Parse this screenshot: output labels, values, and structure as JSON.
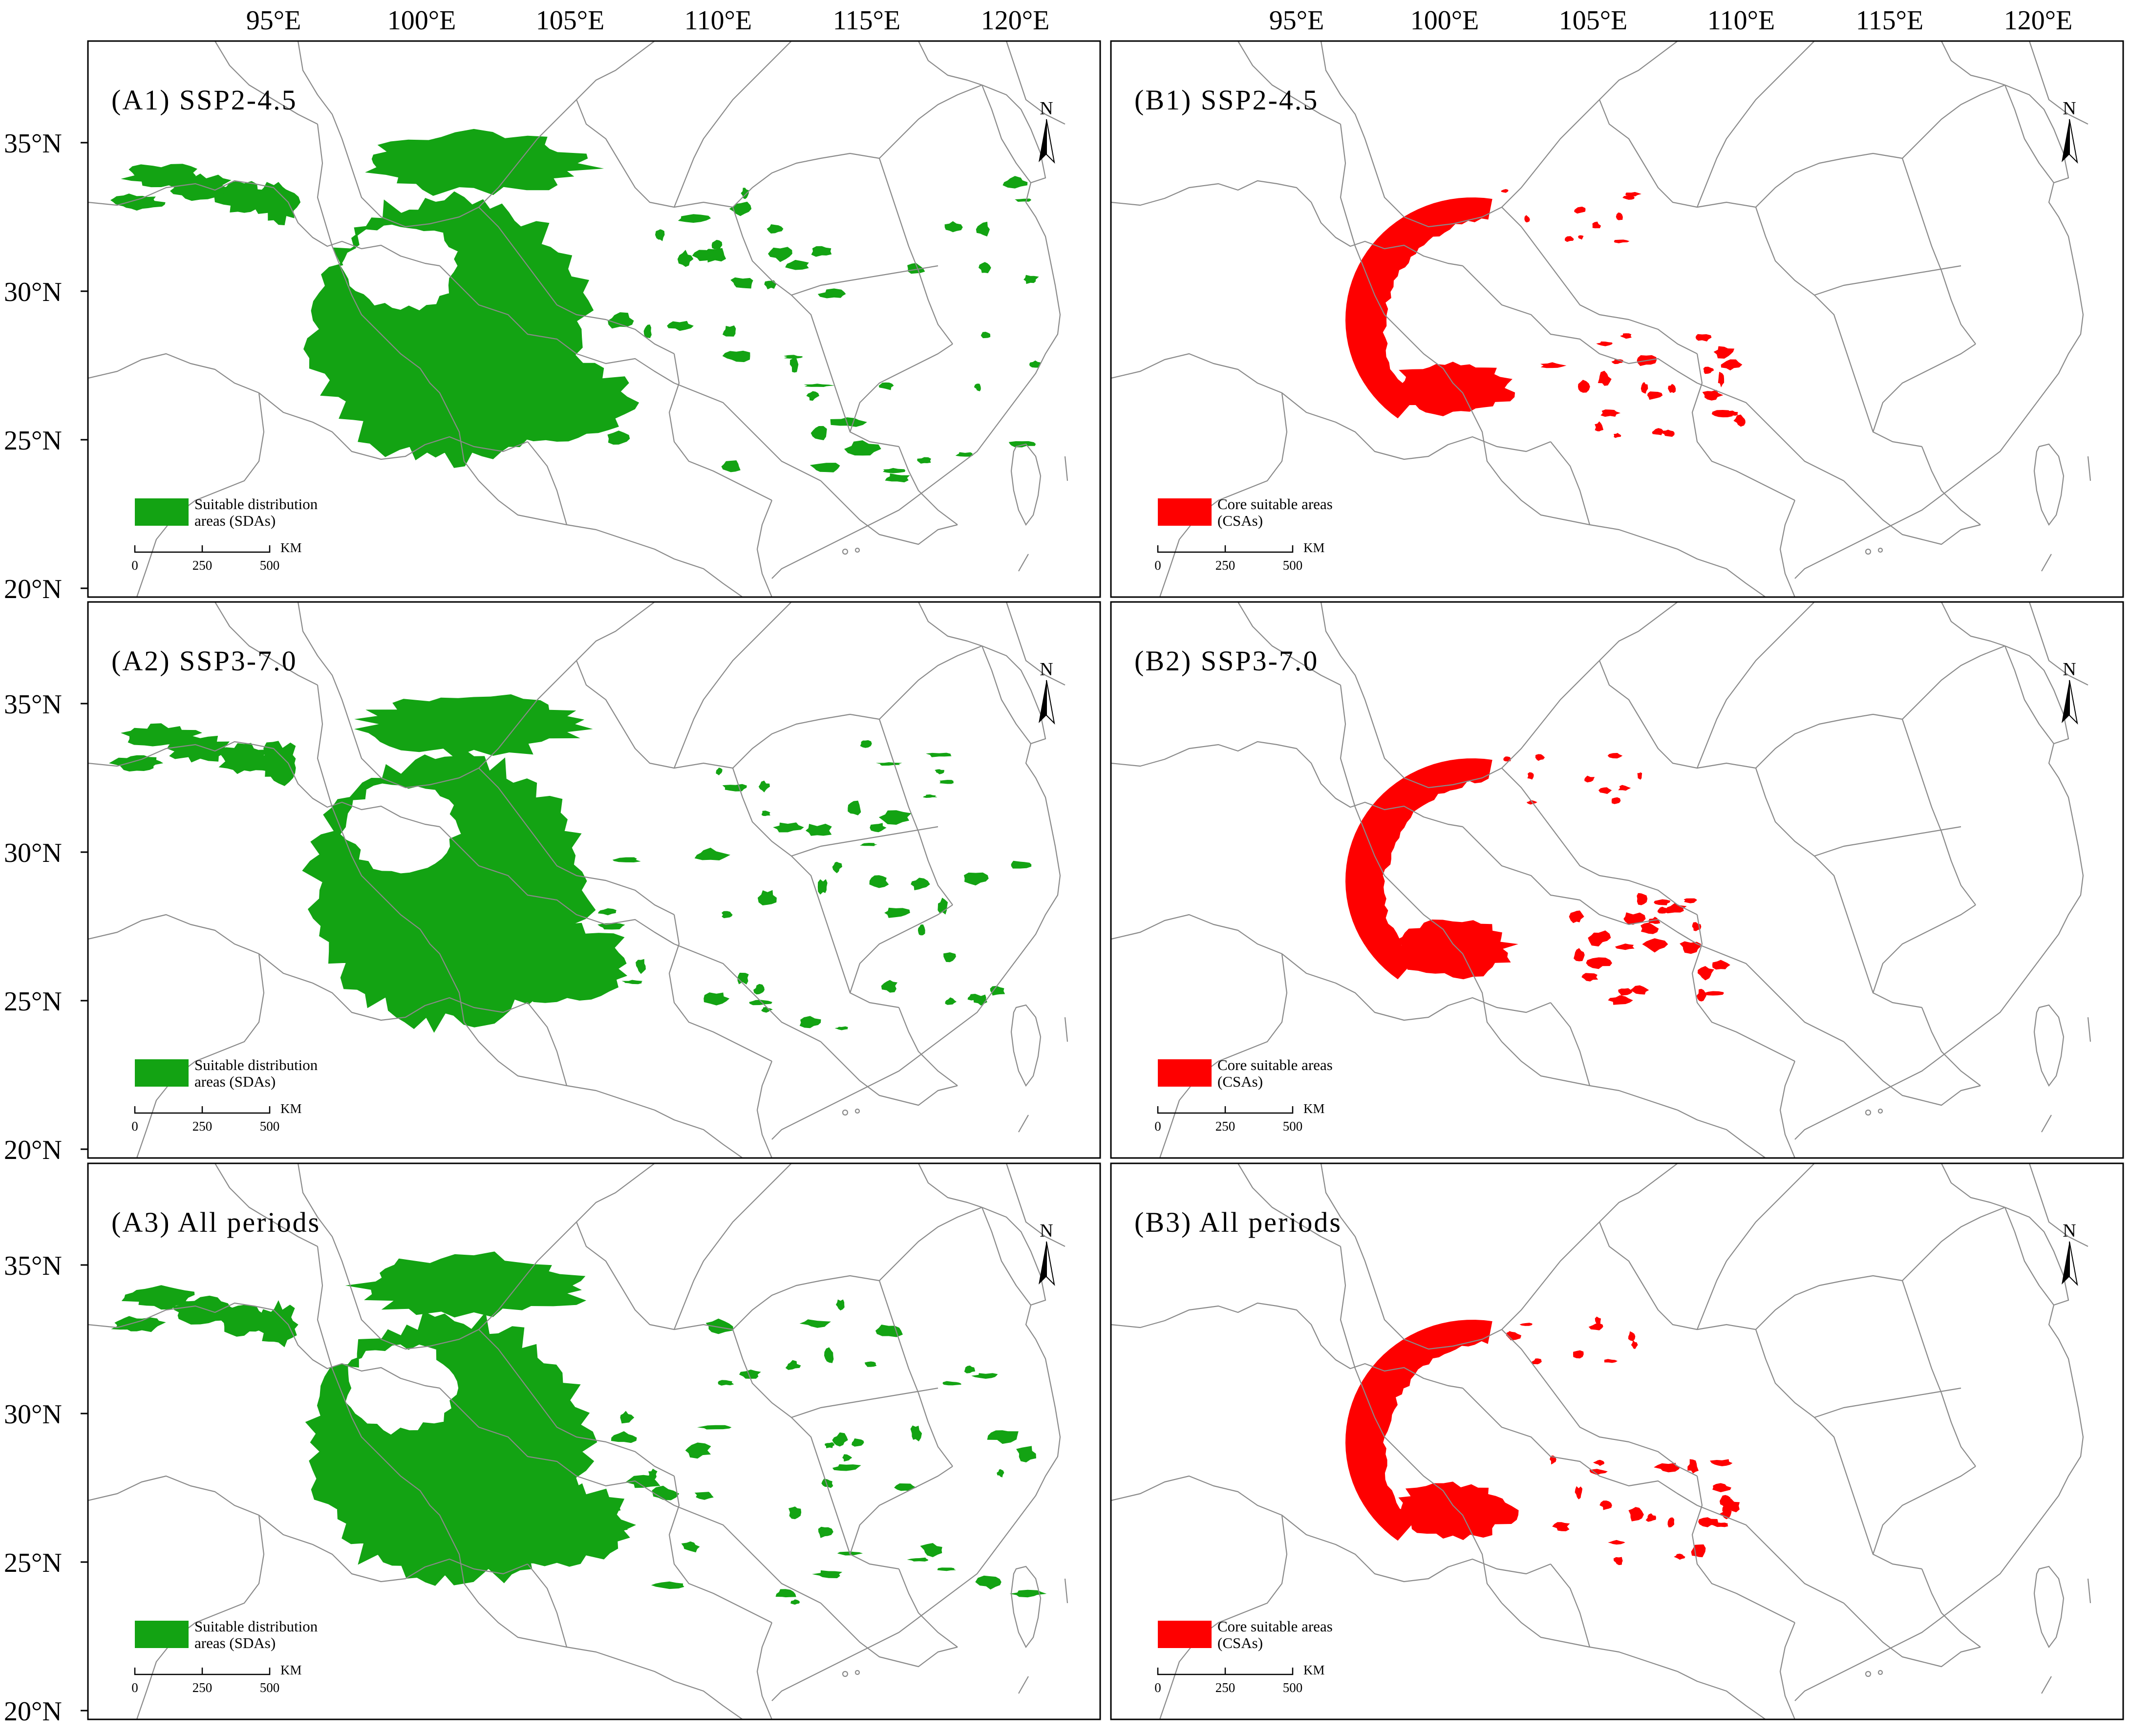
{
  "axes": {
    "top_ticks": [
      "95°E",
      "100°E",
      "105°E",
      "110°E",
      "115°E",
      "120°E"
    ],
    "left_ticks": [
      "35°N",
      "30°N",
      "25°N",
      "20°N"
    ]
  },
  "north_label": "N",
  "scale_bar": {
    "labels": [
      "0",
      "250",
      "500"
    ],
    "unit": "KM"
  },
  "legends": {
    "sdas": {
      "line1": "Suitable distribution",
      "line2": "areas (SDAs)",
      "color": "#13a313"
    },
    "csas": {
      "line1": "Core suitable areas",
      "line2": "(CSAs)",
      "color": "#fe0000"
    }
  },
  "panels": [
    {
      "id": "A1",
      "title": "(A1) SSP2-4.5",
      "layer": "sdas"
    },
    {
      "id": "B1",
      "title": "(B1) SSP2-4.5",
      "layer": "csas"
    },
    {
      "id": "A2",
      "title": "(A2) SSP3-7.0",
      "layer": "sdas"
    },
    {
      "id": "B2",
      "title": "(B2) SSP3-7.0",
      "layer": "csas"
    },
    {
      "id": "A3",
      "title": "(A3) All periods",
      "layer": "sdas"
    },
    {
      "id": "B3",
      "title": "(B3) All periods",
      "layer": "csas"
    }
  ]
}
